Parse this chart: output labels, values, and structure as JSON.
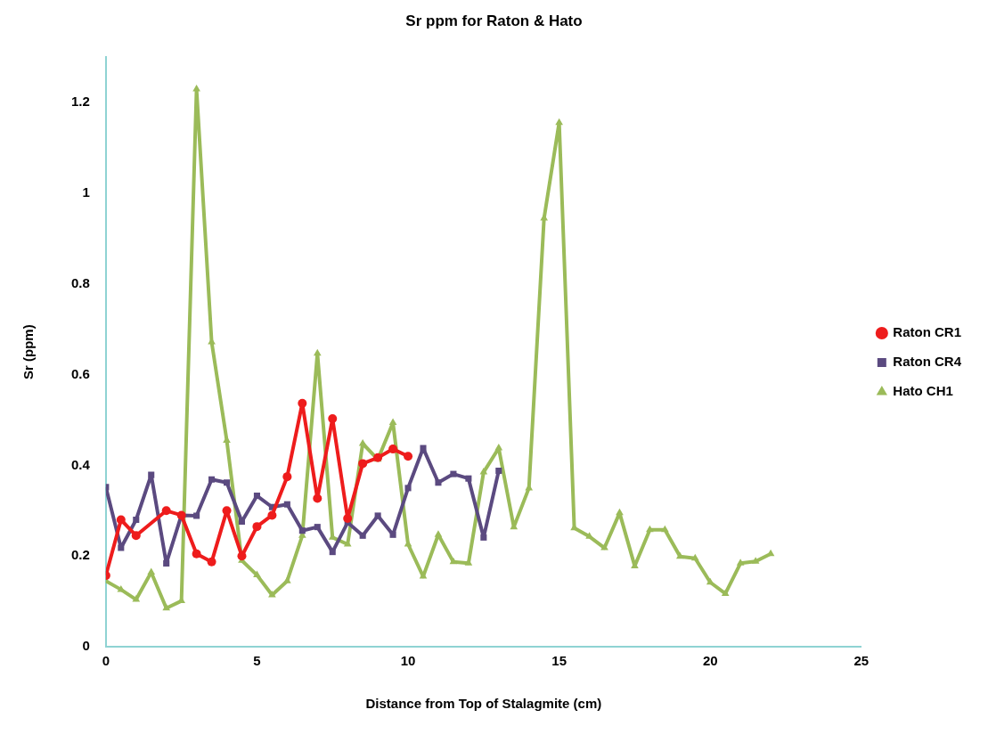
{
  "chart_data": {
    "type": "line",
    "title": "Sr ppm for Raton & Hato",
    "xlabel": "Distance from Top of Stalagmite (cm)",
    "ylabel": "Sr (ppm)",
    "xlim": [
      0,
      25
    ],
    "xticks": [
      0,
      5,
      10,
      15,
      20,
      25
    ],
    "ylim": [
      0,
      1.3
    ],
    "yticks": [
      0,
      0.2,
      0.4,
      0.6,
      0.8,
      1,
      1.2
    ],
    "grid": false,
    "legend": "right",
    "line_style": "solid",
    "series": [
      {
        "name": "Raton CR1",
        "color": "#ee1c1c",
        "marker": "circle",
        "x": [
          0,
          0.5,
          1,
          2,
          2.5,
          3,
          3.5,
          4,
          4.5,
          5,
          5.5,
          6,
          6.5,
          7,
          7.5,
          8,
          8.5,
          9,
          9.5,
          10
        ],
        "values": [
          0.157,
          0.28,
          0.245,
          0.3,
          0.29,
          0.205,
          0.187,
          0.3,
          0.2,
          0.265,
          0.29,
          0.375,
          0.537,
          0.327,
          0.503,
          0.283,
          0.404,
          0.417,
          0.436,
          0.42
        ]
      },
      {
        "name": "Raton CR4",
        "color": "#5b4a80",
        "marker": "square",
        "x": [
          0,
          0.5,
          1,
          1.5,
          2,
          2.5,
          3,
          3.5,
          4,
          4.5,
          5,
          5.5,
          6,
          6.5,
          7,
          7.5,
          8,
          8.5,
          9,
          9.5,
          10,
          10.5,
          11,
          11.5,
          12,
          12.5,
          13
        ],
        "values": [
          0.352,
          0.218,
          0.28,
          0.379,
          0.184,
          0.29,
          0.289,
          0.369,
          0.362,
          0.276,
          0.333,
          0.308,
          0.314,
          0.256,
          0.264,
          0.209,
          0.274,
          0.245,
          0.289,
          0.247,
          0.35,
          0.438,
          0.362,
          0.381,
          0.371,
          0.241,
          0.388
        ]
      },
      {
        "name": "Hato CH1",
        "color": "#9bbb59",
        "marker": "triangle",
        "x": [
          0,
          0.5,
          1,
          1.5,
          2,
          2.5,
          3,
          3.5,
          4,
          4.5,
          5,
          5.5,
          6,
          6.5,
          7,
          7.5,
          8,
          8.5,
          9,
          9.5,
          10,
          10.5,
          11,
          11.5,
          12,
          12.5,
          13,
          13.5,
          14,
          14.5,
          15,
          15.5,
          16,
          16.5,
          17,
          17.5,
          18,
          18.5,
          19,
          19.5,
          20,
          20.5,
          21,
          21.5,
          22
        ],
        "values": [
          0.145,
          0.126,
          0.104,
          0.164,
          0.085,
          0.101,
          1.23,
          0.672,
          0.455,
          0.19,
          0.158,
          0.114,
          0.145,
          0.245,
          0.647,
          0.241,
          0.226,
          0.448,
          0.413,
          0.494,
          0.226,
          0.155,
          0.247,
          0.187,
          0.184,
          0.385,
          0.438,
          0.264,
          0.35,
          0.945,
          1.156,
          0.262,
          0.243,
          0.218,
          0.295,
          0.178,
          0.258,
          0.258,
          0.199,
          0.195,
          0.142,
          0.117,
          0.184,
          0.188,
          0.205
        ]
      }
    ]
  }
}
